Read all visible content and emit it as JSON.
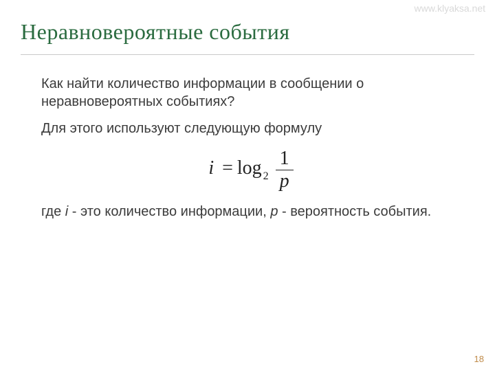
{
  "watermark": "www.klyaksa.net",
  "title": "Неравновероятные события",
  "content": {
    "p1": "Как найти количество информации в сообщении о неравновероятных событиях?",
    "p2": "Для этого используют следующую формулу",
    "p3_part1": "где ",
    "p3_i": "i",
    "p3_part2": " - это количество информации, ",
    "p3_p": "p",
    "p3_part3": " - вероятность события."
  },
  "formula": {
    "i": "i",
    "eq": "=",
    "log": "log",
    "base": "2",
    "num": "1",
    "den": "p"
  },
  "page_number": "18",
  "colors": {
    "title": "#2a6b3f",
    "text": "#3b3b3b",
    "watermark": "#d9d9d9",
    "hr": "#c9c9c9",
    "page_num": "#c08b4a"
  }
}
